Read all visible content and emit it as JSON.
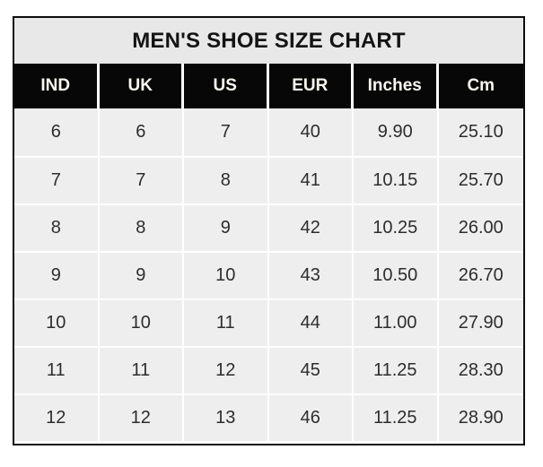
{
  "title": "MEN'S SHOE SIZE CHART",
  "colors": {
    "outer_border": "#0d0d0d",
    "title_background": "#e9e8e8",
    "header_background": "#070707",
    "header_text": "#faf7ef",
    "cell_background": "#efeeee",
    "cell_text": "#2d2d2d",
    "gridline": "#ffffff",
    "page_background": "#ffffff"
  },
  "chart_data": {
    "type": "table",
    "title": "MEN'S SHOE SIZE CHART",
    "columns": [
      "IND",
      "UK",
      "US",
      "EUR",
      "Inches",
      "Cm"
    ],
    "rows": [
      [
        "6",
        "6",
        "7",
        "40",
        "9.90",
        "25.10"
      ],
      [
        "7",
        "7",
        "8",
        "41",
        "10.15",
        "25.70"
      ],
      [
        "8",
        "8",
        "9",
        "42",
        "10.25",
        "26.00"
      ],
      [
        "9",
        "9",
        "10",
        "43",
        "10.50",
        "26.70"
      ],
      [
        "10",
        "10",
        "11",
        "44",
        "11.00",
        "27.90"
      ],
      [
        "11",
        "11",
        "12",
        "45",
        "11.25",
        "28.30"
      ],
      [
        "12",
        "12",
        "13",
        "46",
        "11.25",
        "28.90"
      ]
    ]
  }
}
